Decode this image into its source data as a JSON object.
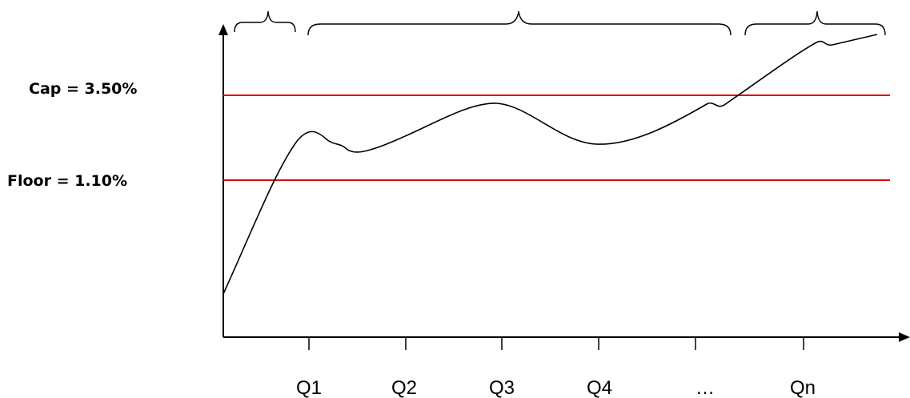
{
  "diagram": {
    "cap_label": "Cap = 3.50%",
    "floor_label": "Floor = 1.10%",
    "quarters": [
      "Q1",
      "Q2",
      "Q3",
      "Q4",
      "…",
      "Qn"
    ],
    "line_color": "#000000",
    "level_line_color": "#dd0000"
  }
}
